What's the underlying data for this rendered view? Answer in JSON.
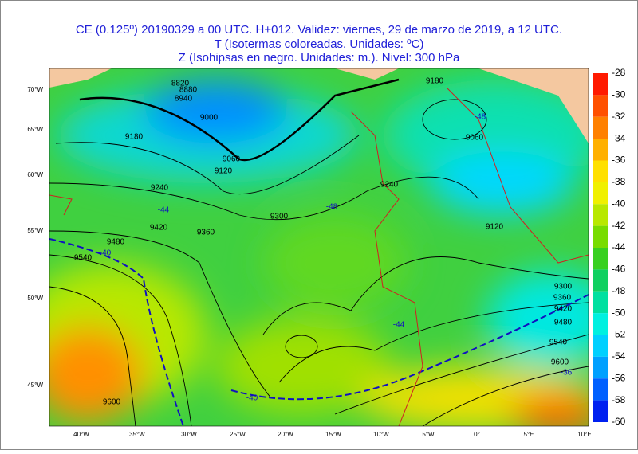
{
  "header": {
    "lines": [
      "CE (0.125º) 20190329 a 00 UTC.  H+012. Validez: viernes, 29 de marzo de 2019,  a  12 UTC.",
      "T (Isotermas coloreadas. Unidades: ºC)",
      "Z (Isohipsas en negro. Unidades: m.).   Nivel: 300 hPa"
    ]
  },
  "colorbar": {
    "ticks": [
      -28,
      -30,
      -32,
      -34,
      -36,
      -38,
      -40,
      -42,
      -44,
      -46,
      -48,
      -50,
      -52,
      -54,
      -56,
      -58,
      -60
    ],
    "colors": [
      "#ff1a00",
      "#ff5000",
      "#ff8000",
      "#ffb000",
      "#ffe000",
      "#f0f000",
      "#b8e800",
      "#78dc00",
      "#38d020",
      "#10d060",
      "#00e0a0",
      "#00f0e0",
      "#00d0ff",
      "#00a0ff",
      "#0060ff",
      "#0020f0"
    ]
  },
  "axes": {
    "lon_labels": [
      "40°W",
      "35°W",
      "30°W",
      "25°W",
      "20°W",
      "15°W",
      "10°W",
      "5°W",
      "0°",
      "5°E",
      "10°E"
    ],
    "lat_labels": [
      "70°W",
      "65°W",
      "60°W",
      "55°W",
      "50°W",
      "45°W"
    ]
  },
  "map": {
    "contour_labels": [
      "8820",
      "8880",
      "8940",
      "9000",
      "9060",
      "9120",
      "9180",
      "9240",
      "9300",
      "9360",
      "9420",
      "9480",
      "9540",
      "9600",
      "9180",
      "9240",
      "9300",
      "9360",
      "9420",
      "9480",
      "9540",
      "9600",
      "9060",
      "9120"
    ],
    "isotherm_labels": [
      "-48",
      "-44",
      "-40",
      "-40",
      "-44",
      "-48",
      "-36"
    ]
  }
}
